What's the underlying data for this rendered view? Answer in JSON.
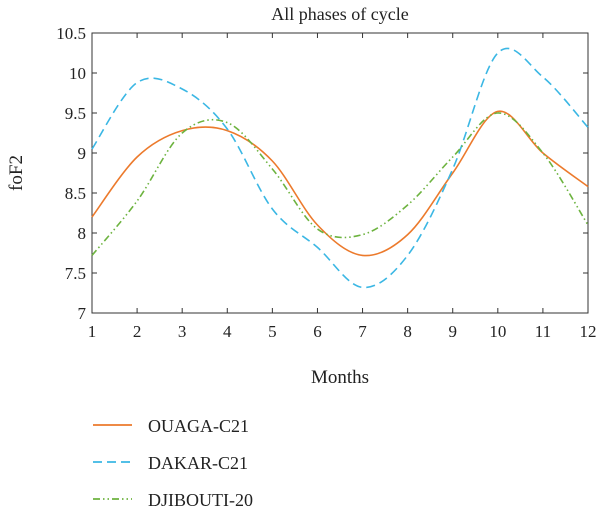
{
  "chart_data": {
    "type": "line",
    "title": "All phases of cycle",
    "xlabel": "Months",
    "ylabel": "foF2",
    "xlim": [
      1,
      12
    ],
    "ylim": [
      7,
      10.5
    ],
    "x_ticks": [
      1,
      2,
      3,
      4,
      5,
      6,
      7,
      8,
      9,
      10,
      11,
      12
    ],
    "y_ticks": [
      "7",
      "7.5",
      "8",
      "8.5",
      "9",
      "9.5",
      "10",
      "10.5"
    ],
    "grid": false,
    "legend_position": "bottom-left, below plot",
    "x": [
      1,
      2,
      3,
      4,
      5,
      6,
      7,
      8,
      9,
      10,
      11,
      12
    ],
    "series": [
      {
        "name": "OUAGA-C21",
        "color": "#ec7a2c",
        "dash": "solid",
        "values": [
          8.2,
          8.95,
          9.28,
          9.28,
          8.9,
          8.1,
          7.72,
          7.98,
          8.75,
          9.52,
          9.0,
          8.58
        ]
      },
      {
        "name": "DAKAR-C21",
        "color": "#3bb7e4",
        "dash": "dashed",
        "values": [
          9.05,
          9.88,
          9.8,
          9.3,
          8.3,
          7.82,
          7.32,
          7.72,
          8.8,
          10.25,
          9.95,
          9.32
        ]
      },
      {
        "name": "DJIBOUTI-20",
        "color": "#6db33f",
        "dash": "dashdotdot",
        "values": [
          7.72,
          8.4,
          9.25,
          9.38,
          8.8,
          8.05,
          7.98,
          8.35,
          8.95,
          9.5,
          9.0,
          8.1
        ]
      }
    ]
  }
}
